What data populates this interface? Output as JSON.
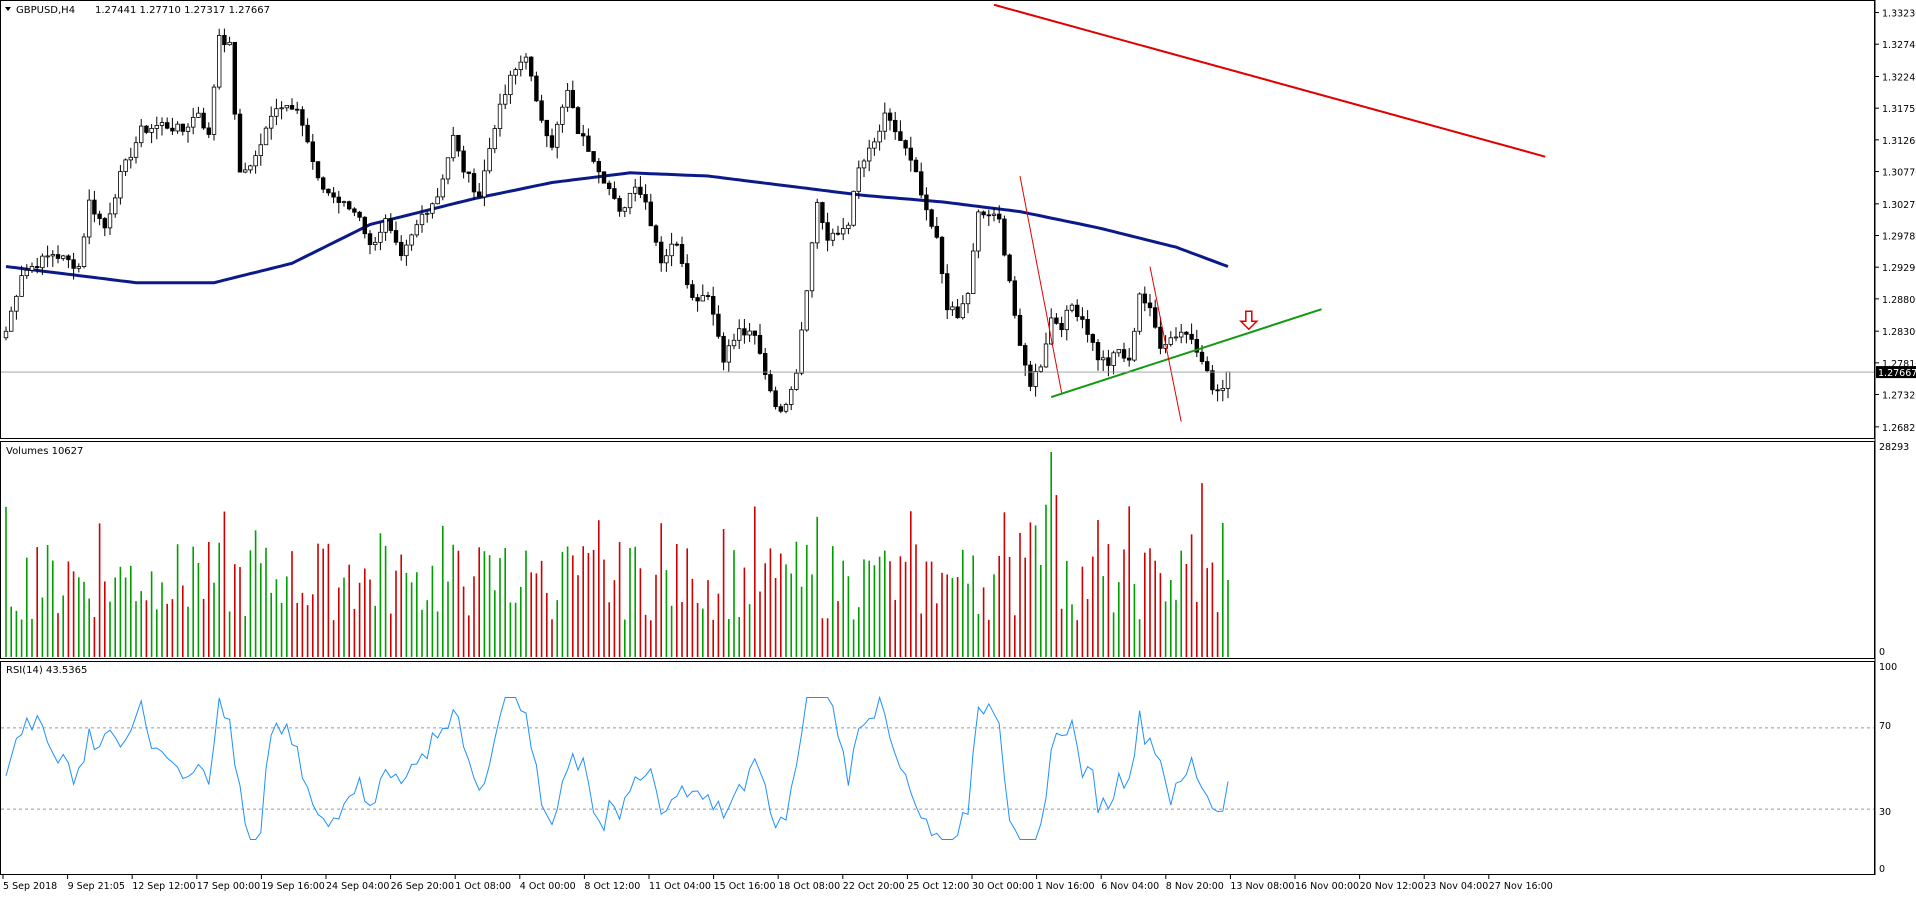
{
  "chart_data": [
    {
      "type": "candlestick",
      "title": "GBPUSD,H4  1.27441 1.27710 1.27317 1.27667",
      "symbol": "GBPUSD,H4",
      "ohlc_header": "1.27441 1.27710 1.27317 1.27667",
      "price_ticks": [
        "1.33230",
        "1.32740",
        "1.32240",
        "1.31750",
        "1.31260",
        "1.30770",
        "1.30270",
        "1.29780",
        "1.29290",
        "1.28800",
        "1.28300",
        "1.27810",
        "1.27320",
        "1.26820"
      ],
      "ylim": [
        1.2674,
        1.333
      ],
      "current_price": "1.27667",
      "bull_color": "#00a000",
      "bear_color": "#d00000",
      "ma_color": "#0b1a8a",
      "trend_color": "#e00000",
      "support_color": "#119911",
      "anchors": [
        [
          0,
          1.283
        ],
        [
          3,
          1.292
        ],
        [
          9,
          1.295
        ],
        [
          14,
          1.293
        ],
        [
          16,
          1.303
        ],
        [
          19,
          1.299
        ],
        [
          22,
          1.307
        ],
        [
          26,
          1.314
        ],
        [
          30,
          1.315
        ],
        [
          34,
          1.314
        ],
        [
          37,
          1.317
        ],
        [
          39,
          1.313
        ],
        [
          41,
          1.329
        ],
        [
          43,
          1.327
        ],
        [
          45,
          1.307
        ],
        [
          48,
          1.31
        ],
        [
          52,
          1.318
        ],
        [
          56,
          1.318
        ],
        [
          60,
          1.306
        ],
        [
          64,
          1.303
        ],
        [
          68,
          1.301
        ],
        [
          70,
          1.296
        ],
        [
          73,
          1.3
        ],
        [
          76,
          1.294
        ],
        [
          80,
          1.301
        ],
        [
          83,
          1.304
        ],
        [
          86,
          1.313
        ],
        [
          88,
          1.308
        ],
        [
          91,
          1.304
        ],
        [
          94,
          1.315
        ],
        [
          97,
          1.322
        ],
        [
          100,
          1.326
        ],
        [
          102,
          1.318
        ],
        [
          105,
          1.312
        ],
        [
          108,
          1.32
        ],
        [
          110,
          1.314
        ],
        [
          113,
          1.31
        ],
        [
          116,
          1.305
        ],
        [
          118,
          1.301
        ],
        [
          121,
          1.306
        ],
        [
          123,
          1.303
        ],
        [
          126,
          1.294
        ],
        [
          129,
          1.297
        ],
        [
          132,
          1.288
        ],
        [
          135,
          1.289
        ],
        [
          138,
          1.279
        ],
        [
          141,
          1.283
        ],
        [
          144,
          1.282
        ],
        [
          147,
          1.274
        ],
        [
          149,
          1.27
        ],
        [
          152,
          1.277
        ],
        [
          154,
          1.29
        ],
        [
          156,
          1.303
        ],
        [
          158,
          1.297
        ],
        [
          160,
          1.298
        ],
        [
          162,
          1.3
        ],
        [
          164,
          1.308
        ],
        [
          167,
          1.312
        ],
        [
          169,
          1.316
        ],
        [
          171,
          1.314
        ],
        [
          173,
          1.311
        ],
        [
          175,
          1.307
        ],
        [
          177,
          1.301
        ],
        [
          179,
          1.297
        ],
        [
          181,
          1.287
        ],
        [
          183,
          1.285
        ],
        [
          185,
          1.289
        ],
        [
          187,
          1.301
        ],
        [
          189,
          1.301
        ],
        [
          191,
          1.3
        ],
        [
          193,
          1.291
        ],
        [
          195,
          1.28
        ],
        [
          197,
          1.275
        ],
        [
          199,
          1.278
        ],
        [
          201,
          1.285
        ],
        [
          203,
          1.284
        ],
        [
          205,
          1.287
        ],
        [
          207,
          1.285
        ],
        [
          210,
          1.279
        ],
        [
          212,
          1.278
        ],
        [
          214,
          1.28
        ],
        [
          216,
          1.278
        ],
        [
          218,
          1.289
        ],
        [
          220,
          1.286
        ],
        [
          222,
          1.281
        ],
        [
          224,
          1.282
        ],
        [
          226,
          1.283
        ],
        [
          228,
          1.282
        ],
        [
          230,
          1.279
        ],
        [
          232,
          1.274
        ],
        [
          234,
          1.2735
        ],
        [
          235,
          1.2767
        ]
      ],
      "ma_anchors": [
        [
          0,
          1.293
        ],
        [
          25,
          1.2905
        ],
        [
          40,
          1.2905
        ],
        [
          55,
          1.2935
        ],
        [
          70,
          1.2995
        ],
        [
          90,
          1.3035
        ],
        [
          105,
          1.306
        ],
        [
          120,
          1.3075
        ],
        [
          135,
          1.307
        ],
        [
          150,
          1.3055
        ],
        [
          165,
          1.304
        ],
        [
          180,
          1.303
        ],
        [
          195,
          1.3015
        ],
        [
          210,
          1.299
        ],
        [
          225,
          1.296
        ],
        [
          235,
          1.293
        ]
      ],
      "trendlines": [
        {
          "name": "main-downtrend",
          "from": [
            190,
            1.3335
          ],
          "to": [
            296,
            1.31
          ]
        },
        {
          "name": "support",
          "from": [
            201,
            1.2728
          ],
          "to": [
            253,
            1.2864
          ]
        },
        {
          "name": "steep-down-1",
          "from": [
            195,
            1.307
          ],
          "to": [
            203,
            1.2735
          ]
        },
        {
          "name": "steep-down-2",
          "from": [
            220,
            1.293
          ],
          "to": [
            226,
            1.269
          ]
        }
      ],
      "arrow": {
        "bar": 239,
        "price": 1.2833
      }
    },
    {
      "type": "bar",
      "title": "Volumes 10627",
      "value_label": "10627",
      "ticks": [
        "28293",
        "0"
      ],
      "ylim": [
        0,
        28293
      ]
    },
    {
      "type": "line",
      "title": "RSI(14) 43.5365",
      "value_label": "43.5365",
      "ticks": [
        "100",
        "70",
        "30",
        "0"
      ],
      "levels": [
        70,
        30
      ],
      "ylim": [
        0,
        100
      ],
      "line_color": "#1e90ff"
    }
  ],
  "time_labels": [
    "5 Sep 2018",
    "9 Sep 21:05",
    "12 Sep 12:00",
    "17 Sep 00:00",
    "19 Sep 16:00",
    "24 Sep 04:00",
    "26 Sep 20:00",
    "1 Oct 08:00",
    "4 Oct 00:00",
    "8 Oct 12:00",
    "11 Oct 04:00",
    "15 Oct 16:00",
    "18 Oct 08:00",
    "22 Oct 20:00",
    "25 Oct 12:00",
    "30 Oct 00:00",
    "1 Nov 16:00",
    "6 Nov 04:00",
    "8 Nov 20:00",
    "13 Nov 08:00",
    "16 Nov 00:00",
    "20 Nov 12:00",
    "23 Nov 04:00",
    "27 Nov 16:00"
  ]
}
